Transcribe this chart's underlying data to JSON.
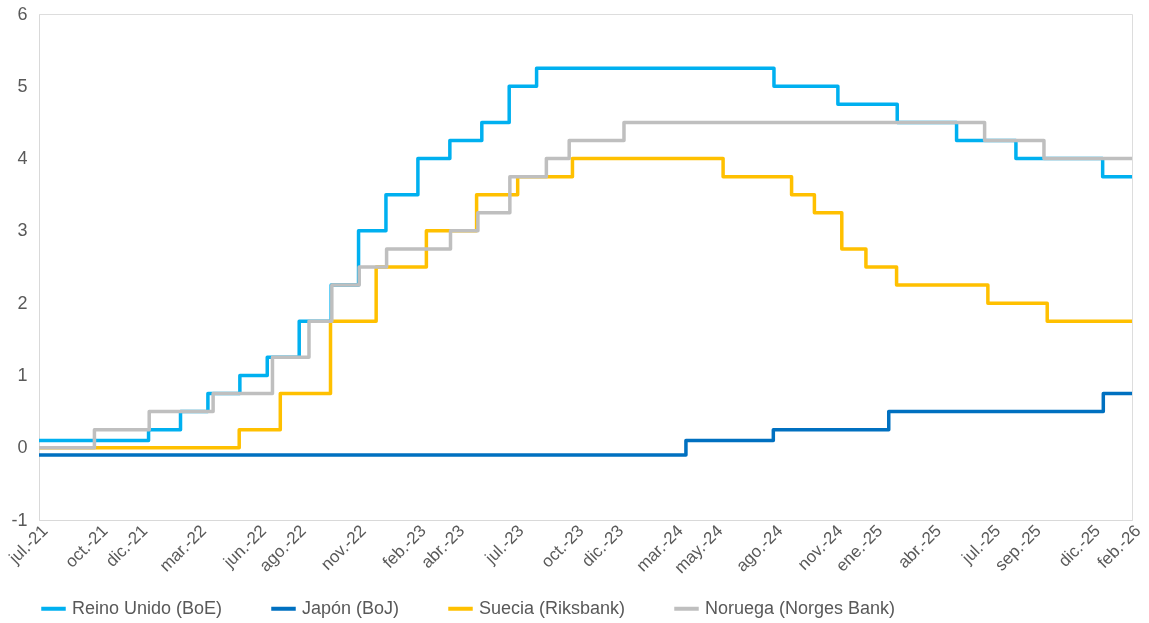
{
  "chart_data": {
    "type": "step",
    "xlim": [
      "2021-07-01",
      "2026-02-01"
    ],
    "xticks": [
      {
        "value": "2021-07-01",
        "label": "jul.-21"
      },
      {
        "value": "2021-10-01",
        "label": "oct.-21"
      },
      {
        "value": "2021-12-01",
        "label": "dic.-21"
      },
      {
        "value": "2022-03-01",
        "label": "mar.-22"
      },
      {
        "value": "2022-06-01",
        "label": "jun.-22"
      },
      {
        "value": "2022-08-01",
        "label": "ago.-22"
      },
      {
        "value": "2022-11-01",
        "label": "nov.-22"
      },
      {
        "value": "2023-02-01",
        "label": "feb.-23"
      },
      {
        "value": "2023-04-01",
        "label": "abr.-23"
      },
      {
        "value": "2023-07-01",
        "label": "jul.-23"
      },
      {
        "value": "2023-10-01",
        "label": "oct.-23"
      },
      {
        "value": "2023-12-01",
        "label": "dic.-23"
      },
      {
        "value": "2024-03-01",
        "label": "mar.-24"
      },
      {
        "value": "2024-05-01",
        "label": "may.-24"
      },
      {
        "value": "2024-08-01",
        "label": "ago.-24"
      },
      {
        "value": "2024-11-01",
        "label": "nov.-24"
      },
      {
        "value": "2025-01-01",
        "label": "ene.-25"
      },
      {
        "value": "2025-04-01",
        "label": "abr.-25"
      },
      {
        "value": "2025-07-01",
        "label": "jul.-25"
      },
      {
        "value": "2025-09-01",
        "label": "sep.-25"
      },
      {
        "value": "2025-12-01",
        "label": "dic.-25"
      },
      {
        "value": "2026-02-01",
        "label": "feb.-26"
      }
    ],
    "ylim": [
      -1,
      6
    ],
    "yticks": [
      -1,
      0,
      1,
      2,
      3,
      4,
      5,
      6
    ],
    "grid": false,
    "legend": "bottom",
    "line_style": "solid",
    "marker": "none",
    "series": [
      {
        "name": "Reino Unido (BoE)",
        "color": "#00b0f0",
        "x": [
          "2021-07-01",
          "2021-12-16",
          "2022-02-03",
          "2022-03-17",
          "2022-05-05",
          "2022-06-16",
          "2022-08-04",
          "2022-09-22",
          "2022-11-03",
          "2022-12-15",
          "2023-02-02",
          "2023-03-23",
          "2023-05-11",
          "2023-06-22",
          "2023-08-03",
          "2024-08-01",
          "2024-11-07",
          "2025-02-06",
          "2025-05-08",
          "2025-08-07",
          "2025-12-18",
          "2026-02-01"
        ],
        "values": [
          0.1,
          0.25,
          0.5,
          0.75,
          1.0,
          1.25,
          1.75,
          2.25,
          3.0,
          3.5,
          4.0,
          4.25,
          4.5,
          5.0,
          5.25,
          5.0,
          4.75,
          4.5,
          4.25,
          4.0,
          3.75,
          3.75
        ]
      },
      {
        "name": "Japón (BoJ)",
        "color": "#0070c0",
        "x": [
          "2021-07-01",
          "2024-03-19",
          "2024-07-31",
          "2025-01-24",
          "2025-12-19",
          "2026-02-01"
        ],
        "values": [
          -0.1,
          0.1,
          0.25,
          0.5,
          0.75,
          0.75
        ]
      },
      {
        "name": "Suecia (Riksbank)",
        "color": "#ffc000",
        "x": [
          "2021-07-01",
          "2022-05-04",
          "2022-07-06",
          "2022-09-21",
          "2022-11-30",
          "2023-02-15",
          "2023-05-03",
          "2023-07-05",
          "2023-09-27",
          "2024-05-15",
          "2024-08-28",
          "2024-10-02",
          "2024-11-13",
          "2024-12-20",
          "2025-02-05",
          "2025-06-25",
          "2025-09-24",
          "2026-02-01"
        ],
        "values": [
          0.0,
          0.25,
          0.75,
          1.75,
          2.5,
          3.0,
          3.5,
          3.75,
          4.0,
          3.75,
          3.5,
          3.25,
          2.75,
          2.5,
          2.25,
          2.0,
          1.75,
          1.75
        ]
      },
      {
        "name": "Noruega (Norges Bank)",
        "color": "#bfbfbf",
        "x": [
          "2021-07-01",
          "2021-09-24",
          "2021-12-17",
          "2022-03-25",
          "2022-06-24",
          "2022-08-19",
          "2022-09-23",
          "2022-11-04",
          "2022-12-16",
          "2023-03-24",
          "2023-05-05",
          "2023-06-23",
          "2023-08-18",
          "2023-09-22",
          "2023-12-15",
          "2025-06-20",
          "2025-09-19",
          "2026-02-01"
        ],
        "values": [
          0.0,
          0.25,
          0.5,
          0.75,
          1.25,
          1.75,
          2.25,
          2.5,
          2.75,
          3.0,
          3.25,
          3.75,
          4.0,
          4.25,
          4.5,
          4.25,
          4.0,
          4.0
        ]
      }
    ]
  }
}
